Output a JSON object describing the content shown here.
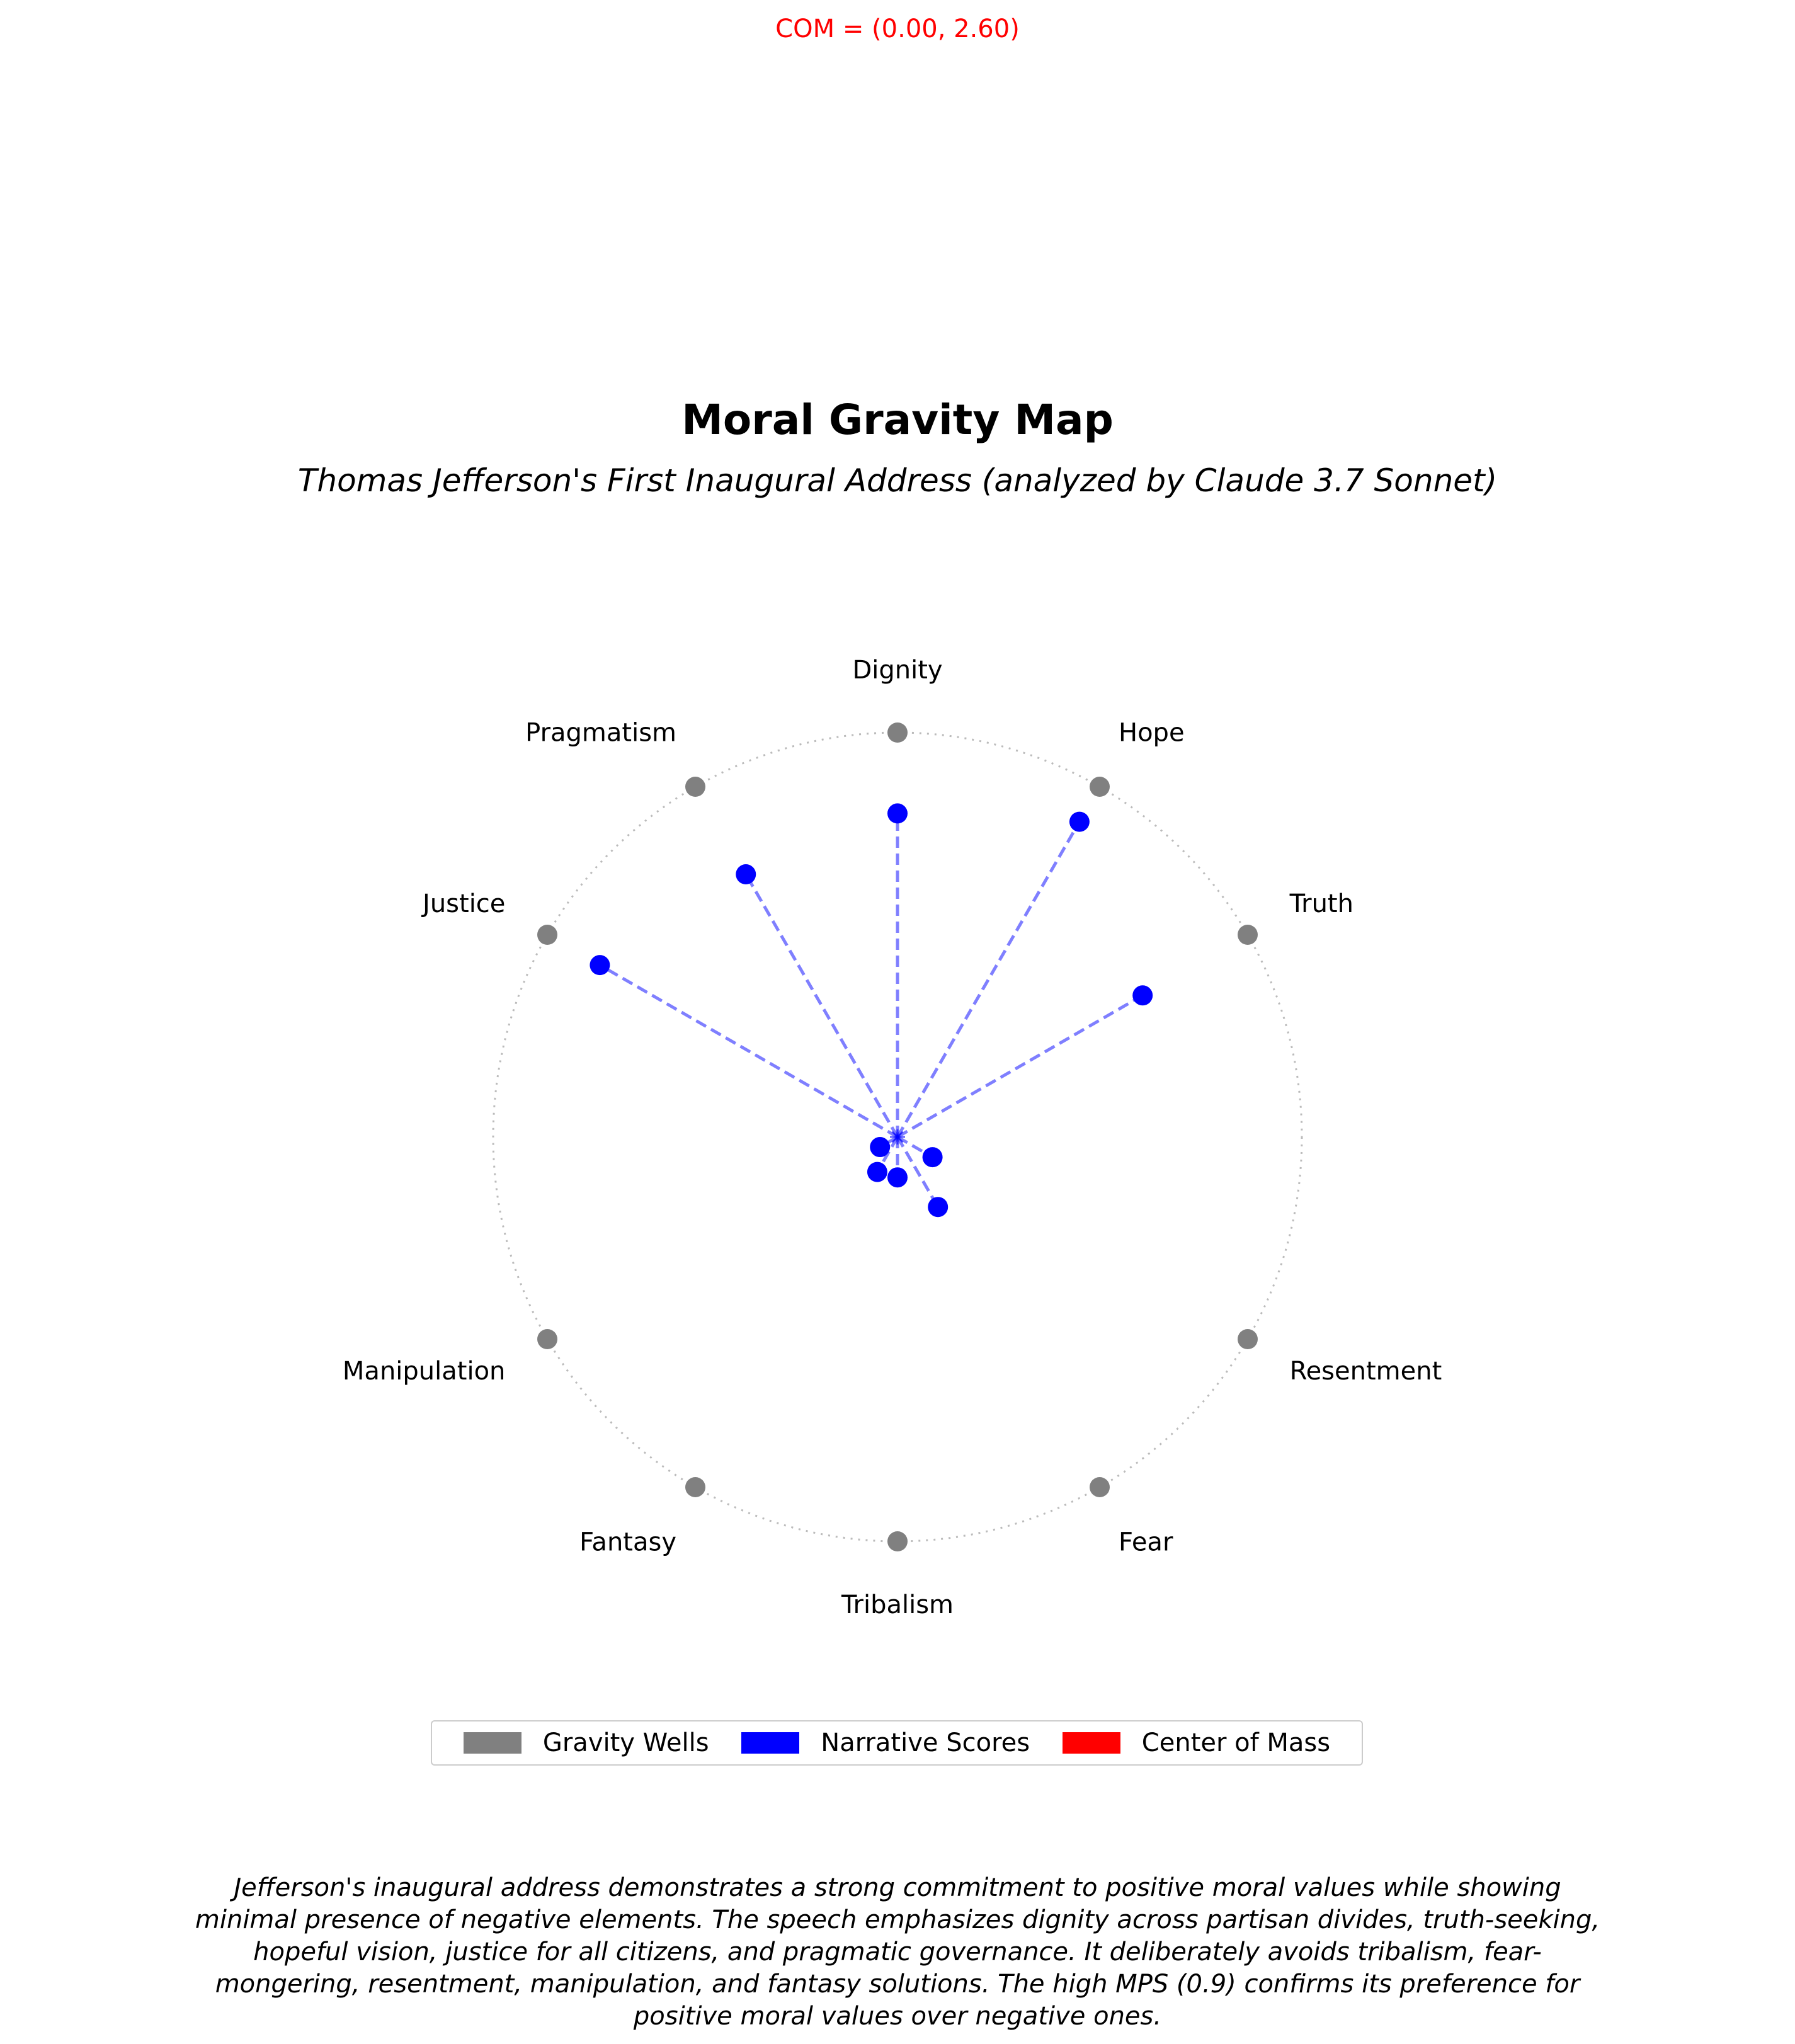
{
  "com_label": "COM = (0.00, 2.60)",
  "title": "Moral Gravity Map",
  "subtitle": "Thomas Jefferson's First Inaugural Address (analyzed by Claude 3.7 Sonnet)",
  "legend": [
    {
      "label": "Gravity Wells",
      "color": "#808080"
    },
    {
      "label": "Narrative Scores",
      "color": "#0000ff"
    },
    {
      "label": "Center of Mass",
      "color": "#ff0000"
    }
  ],
  "caption": "Jefferson's inaugural address demonstrates a strong commitment to positive moral values while showing minimal presence of negative elements. The speech emphasizes dignity across partisan divides, truth-seeking, hopeful vision, justice for all citizens, and pragmatic governance. It deliberately avoids tribalism, fear-mongering, resentment, manipulation, and fantasy solutions. The high MPS (0.9) confirms its preference for positive moral values over negative ones.",
  "chart_data": {
    "type": "scatter",
    "title": "Moral Gravity Map",
    "subtitle": "Thomas Jefferson's First Inaugural Address (analyzed by Claude 3.7 Sonnet)",
    "wells": [
      {
        "name": "Dignity",
        "angle_deg": 90
      },
      {
        "name": "Hope",
        "angle_deg": 60
      },
      {
        "name": "Truth",
        "angle_deg": 30
      },
      {
        "name": "Resentment",
        "angle_deg": -30
      },
      {
        "name": "Fear",
        "angle_deg": -60
      },
      {
        "name": "Tribalism",
        "angle_deg": -90
      },
      {
        "name": "Fantasy",
        "angle_deg": -120
      },
      {
        "name": "Manipulation",
        "angle_deg": -150
      },
      {
        "name": "Justice",
        "angle_deg": 150
      },
      {
        "name": "Pragmatism",
        "angle_deg": 120
      }
    ],
    "narrative_scores": [
      {
        "well": "Dignity",
        "value": 0.8
      },
      {
        "well": "Hope",
        "value": 0.9
      },
      {
        "well": "Truth",
        "value": 0.7
      },
      {
        "well": "Justice",
        "value": 0.85
      },
      {
        "well": "Pragmatism",
        "value": 0.75
      },
      {
        "well": "Resentment",
        "value": 0.1
      },
      {
        "well": "Fear",
        "value": 0.2
      },
      {
        "well": "Tribalism",
        "value": 0.1
      },
      {
        "well": "Fantasy",
        "value": 0.1
      },
      {
        "well": "Manipulation",
        "value": 0.05
      }
    ],
    "center_of_mass": [
      0.0,
      2.6
    ],
    "legend_position": "bottom"
  }
}
